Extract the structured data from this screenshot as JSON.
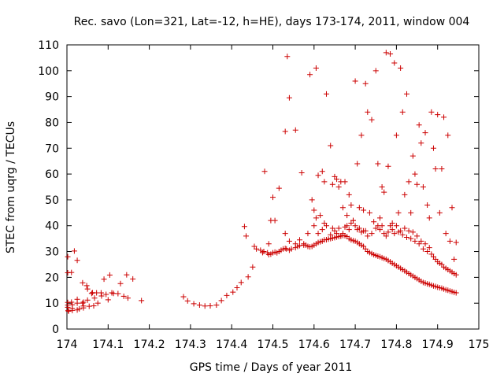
{
  "chart_data": {
    "type": "scatter",
    "title": "Rec. savo (Lon=321, Lat=-12, h=HE), days 173-174, 2011, window 004",
    "xlabel": "GPS time / Days of year 2011",
    "ylabel": "STEC from uqrg / TECUs",
    "xlim": [
      174,
      175
    ],
    "ylim": [
      0,
      110
    ],
    "xticks": [
      "174",
      "174.1",
      "174.2",
      "174.3",
      "174.4",
      "174.5",
      "174.6",
      "174.7",
      "174.8",
      "174.9",
      "175"
    ],
    "yticks": [
      "0",
      "10",
      "20",
      "30",
      "40",
      "50",
      "60",
      "70",
      "80",
      "90",
      "100",
      "110"
    ],
    "grid": false,
    "legend": "none",
    "marker": "plus",
    "color": "#cc0000",
    "series": [
      {
        "x": [
          174.002,
          174.002,
          174.002,
          174.002,
          174.002,
          174.003,
          174.004,
          174.011,
          174.011,
          174.013,
          174.013,
          174.013,
          174.018,
          174.025,
          174.025,
          174.025,
          174.025,
          174.03,
          174.038,
          174.038,
          174.04,
          174.04,
          174.04,
          174.048,
          174.05,
          174.05,
          174.054,
          174.06,
          174.062,
          174.065,
          174.067,
          174.072,
          174.075,
          174.083,
          174.084,
          174.09,
          174.095,
          174.1,
          174.104,
          174.109,
          174.113,
          174.124,
          174.13,
          174.138,
          174.145,
          174.148,
          174.16,
          174.181
        ],
        "y": [
          28.0,
          21.8,
          10.3,
          9.3,
          8.4,
          7.2,
          6.9,
          10.4,
          21.9,
          9.4,
          8.0,
          7.2,
          30.2,
          26.6,
          7.4,
          11.5,
          10.0,
          7.8,
          17.9,
          10.0,
          10.4,
          8.9,
          8.2,
          16.8,
          15.5,
          11.2,
          8.8,
          13.8,
          14.1,
          9.0,
          12.0,
          14.0,
          10.0,
          14.0,
          12.8,
          19.3,
          13.4,
          11.3,
          20.9,
          14.0,
          13.8,
          13.7,
          17.6,
          12.7,
          21.0,
          12.0,
          19.4,
          11.0
        ]
      },
      {
        "x": [
          174.283,
          174.293,
          174.308,
          174.322,
          174.335,
          174.348,
          174.363,
          174.375,
          174.388,
          174.403,
          174.413,
          174.423,
          174.431,
          174.44,
          174.451
        ],
        "y": [
          12.5,
          10.9,
          9.8,
          9.3,
          8.9,
          9.0,
          9.3,
          11.0,
          13.0,
          14.3,
          16.0,
          18.0,
          39.7,
          20.2,
          24.0
        ]
      },
      {
        "x": [
          174.435,
          174.455,
          174.46,
          174.47,
          174.478,
          174.487,
          174.49,
          174.495,
          174.5,
          174.505,
          174.51,
          174.515,
          174.52,
          174.525,
          174.53,
          174.533,
          174.54,
          174.545,
          174.555,
          174.56,
          174.565,
          174.575,
          174.58,
          174.585,
          174.59,
          174.595,
          174.6,
          174.605,
          174.61,
          174.615,
          174.62,
          174.625,
          174.63,
          174.635,
          174.64,
          174.645,
          174.65,
          174.655,
          174.66,
          174.665,
          174.67,
          174.675,
          174.68,
          174.685,
          174.69,
          174.695,
          174.7,
          174.705,
          174.71,
          174.715,
          174.72,
          174.725,
          174.73,
          174.735,
          174.74,
          174.745,
          174.75,
          174.755,
          174.76,
          174.765,
          174.77,
          174.775,
          174.78,
          174.785,
          174.79,
          174.795,
          174.8,
          174.805,
          174.81,
          174.815,
          174.82,
          174.825,
          174.83,
          174.835,
          174.84,
          174.845,
          174.85,
          174.855,
          174.86,
          174.865,
          174.87,
          174.875,
          174.88,
          174.885,
          174.89,
          174.895,
          174.9,
          174.905,
          174.91,
          174.915,
          174.92,
          174.925,
          174.93,
          174.935,
          174.94,
          174.945
        ],
        "y": [
          36.0,
          32.0,
          31.0,
          30.5,
          30.0,
          29.5,
          28.8,
          29.0,
          29.5,
          29.8,
          29.5,
          30.0,
          30.5,
          31.0,
          31.2,
          31.0,
          30.5,
          31.0,
          31.5,
          32.0,
          32.3,
          32.5,
          32.5,
          32.0,
          31.8,
          32.0,
          32.5,
          33.0,
          33.5,
          33.8,
          34.0,
          34.5,
          34.6,
          34.8,
          35.0,
          35.2,
          35.4,
          35.6,
          35.8,
          36.0,
          36.2,
          36.1,
          35.8,
          35.0,
          34.5,
          34.2,
          34.0,
          33.5,
          33.0,
          32.5,
          32.0,
          31.0,
          30.0,
          29.6,
          29.2,
          28.8,
          28.5,
          28.2,
          28.0,
          27.6,
          27.3,
          27.0,
          26.5,
          26.0,
          25.5,
          25.0,
          24.5,
          24.0,
          23.5,
          23.0,
          22.5,
          22.0,
          21.5,
          21.0,
          20.5,
          20.0,
          19.5,
          19.0,
          18.5,
          18.0,
          17.8,
          17.5,
          17.3,
          17.0,
          16.7,
          16.5,
          16.2,
          16.0,
          15.8,
          15.5,
          15.2,
          15.0,
          14.7,
          14.5,
          14.2,
          14.0
        ]
      },
      {
        "x": [
          174.475,
          174.48,
          174.49,
          174.495,
          174.5,
          174.505,
          174.515,
          174.53,
          174.54,
          174.555,
          174.565,
          174.575,
          174.585,
          174.595,
          174.6,
          174.605,
          174.61,
          174.62,
          174.625,
          174.63,
          174.64,
          174.645,
          174.65,
          174.655,
          174.66,
          174.665,
          174.67,
          174.675,
          174.68,
          174.685,
          174.69,
          174.695,
          174.7,
          174.705,
          174.71,
          174.715,
          174.72,
          174.725,
          174.73,
          174.74,
          174.75,
          174.755,
          174.76,
          174.765,
          174.77,
          174.775,
          174.78,
          174.785,
          174.79,
          174.795,
          174.8,
          174.805,
          174.81,
          174.815,
          174.82,
          174.825,
          174.83,
          174.835,
          174.84,
          174.845,
          174.85,
          174.855,
          174.86,
          174.865,
          174.87,
          174.875,
          174.88,
          174.885,
          174.89,
          174.895,
          174.9,
          174.905,
          174.91,
          174.915,
          174.92,
          174.925,
          174.93,
          174.935,
          174.94,
          174.945
        ],
        "y": [
          29.6,
          61.0,
          33.0,
          42.0,
          51.0,
          42.0,
          54.5,
          37.0,
          34.0,
          33.0,
          34.5,
          33.0,
          37.0,
          50.0,
          40.0,
          43.0,
          37.0,
          38.5,
          41.0,
          40.0,
          36.5,
          39.0,
          38.0,
          37.0,
          39.0,
          36.0,
          37.0,
          39.5,
          40.0,
          38.5,
          41.0,
          42.0,
          40.0,
          38.5,
          39.0,
          37.5,
          38.0,
          38.0,
          36.0,
          37.0,
          39.0,
          40.0,
          38.5,
          40.0,
          37.0,
          36.0,
          37.5,
          40.0,
          38.5,
          37.0,
          40.0,
          37.5,
          38.0,
          36.5,
          39.0,
          35.5,
          38.0,
          35.0,
          37.5,
          34.0,
          36.0,
          33.0,
          34.0,
          31.0,
          33.0,
          30.0,
          31.5,
          29.0,
          28.0,
          27.0,
          26.0,
          25.5,
          25.0,
          24.0,
          23.5,
          23.0,
          22.5,
          22.0,
          21.5,
          21.0
        ]
      },
      {
        "x": [
          174.53,
          174.535,
          174.54,
          174.555,
          174.57,
          174.59,
          174.6,
          174.605,
          174.61,
          174.615,
          174.62,
          174.625,
          174.63,
          174.64,
          174.645,
          174.65,
          174.655,
          174.66,
          174.665,
          174.67,
          174.675,
          174.68,
          174.685,
          174.69,
          174.695,
          174.7,
          174.705,
          174.71,
          174.715,
          174.72,
          174.725,
          174.73,
          174.735,
          174.74,
          174.745,
          174.75,
          174.755,
          174.76,
          174.765,
          174.77,
          174.775,
          174.78,
          174.785,
          174.79,
          174.795,
          174.8,
          174.805,
          174.81,
          174.815,
          174.82,
          174.825,
          174.83,
          174.835,
          174.84,
          174.845,
          174.85,
          174.855,
          174.86,
          174.865,
          174.87,
          174.875,
          174.88,
          174.885,
          174.89,
          174.895,
          174.9,
          174.905,
          174.91,
          174.915,
          174.92,
          174.925,
          174.93,
          174.935,
          174.94,
          174.945
        ],
        "y": [
          76.5,
          105.5,
          89.5,
          77.0,
          60.5,
          98.5,
          46.0,
          101.0,
          59.5,
          44.0,
          61.0,
          57.0,
          91.0,
          71.0,
          56.0,
          59.0,
          58.0,
          55.0,
          57.0,
          47.0,
          57.0,
          44.0,
          52.0,
          48.0,
          42.0,
          96.0,
          64.0,
          47.0,
          75.0,
          46.0,
          95.0,
          84.0,
          45.0,
          81.0,
          41.5,
          100.0,
          64.0,
          43.0,
          55.0,
          53.0,
          107.0,
          63.0,
          106.5,
          41.0,
          103.0,
          75.0,
          45.0,
          101.0,
          84.0,
          52.0,
          91.0,
          57.0,
          45.0,
          67.0,
          60.0,
          56.0,
          79.0,
          72.0,
          55.0,
          76.0,
          48.0,
          43.0,
          84.0,
          70.0,
          62.0,
          83.0,
          45.0,
          62.0,
          82.0,
          37.0,
          75.0,
          34.0,
          47.0,
          27.0,
          33.5
        ]
      }
    ]
  }
}
